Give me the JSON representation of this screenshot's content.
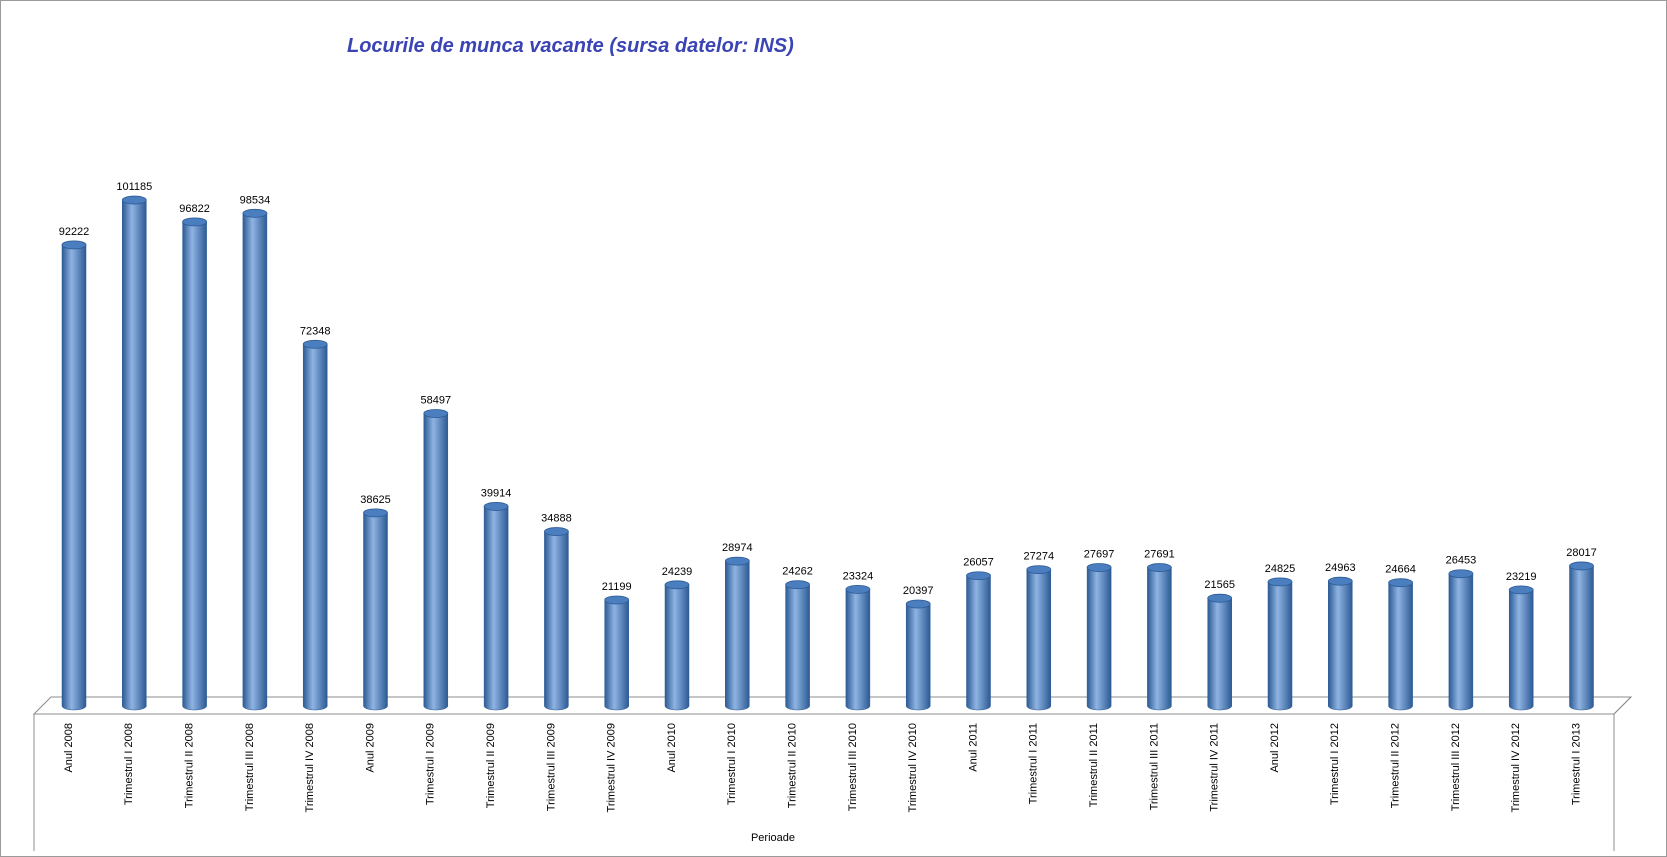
{
  "chart_data": {
    "type": "bar",
    "style": "3d-cylinder",
    "title": "Locurile de munca vacante (sursa datelor: INS)",
    "xlabel": "Perioade",
    "ylabel": "",
    "ylim": [
      0,
      110000
    ],
    "grid": false,
    "legend": "none",
    "data_labels": true,
    "colors": {
      "title": "#3b44b4",
      "bar": "#4a7ebf",
      "bar_dark": "#2c5a94",
      "bar_light": "#8fb4e3",
      "floor": "#ffffff",
      "floor_stroke": "#8c8c8c"
    },
    "categories": [
      "Anul 2008",
      "Trimestrul I 2008",
      "Trimestrul II 2008",
      "Trimestrul III 2008",
      "Trimestrul IV 2008",
      "Anul 2009",
      "Trimestrul I 2009",
      "Trimestrul II 2009",
      "Trimestrul III 2009",
      "Trimestrul IV 2009",
      "Anul 2010",
      "Trimestrul I 2010",
      "Trimestrul II 2010",
      "Trimestrul III 2010",
      "Trimestrul IV 2010",
      "Anul 2011",
      "Trimestrul I 2011",
      "Trimestrul II 2011",
      "Trimestrul III 2011",
      "Trimestrul IV 2011",
      "Anul 2012",
      "Trimestrul I 2012",
      "Trimestrul II 2012",
      "Trimestrul III 2012",
      "Trimestrul IV 2012",
      "Trimestrul I 2013"
    ],
    "values": [
      92222,
      101185,
      96822,
      98534,
      72348,
      38625,
      58497,
      39914,
      34888,
      21199,
      24239,
      28974,
      24262,
      23324,
      20397,
      26057,
      27274,
      27697,
      27691,
      21565,
      24825,
      24963,
      24664,
      26453,
      23219,
      28017
    ]
  }
}
